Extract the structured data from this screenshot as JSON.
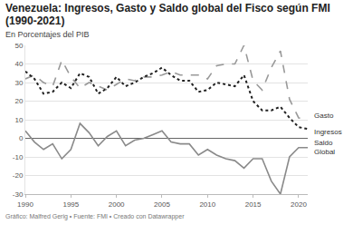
{
  "chart_data": {
    "type": "line",
    "title": "Venezuela: Ingresos, Gasto y Saldo global del Fisco según FMI (1990-2021)",
    "subtitle": "En Porcentajes del PIB",
    "footer": "Gráfico: Malfred Gerig • Fuente: FMI • Creado con Datawrapper",
    "x": [
      1990,
      1991,
      1992,
      1993,
      1994,
      1995,
      1996,
      1997,
      1998,
      1999,
      2000,
      2001,
      2002,
      2003,
      2004,
      2005,
      2006,
      2007,
      2008,
      2009,
      2010,
      2011,
      2012,
      2013,
      2014,
      2015,
      2016,
      2017,
      2018,
      2019,
      2020,
      2021
    ],
    "series": [
      {
        "name": "Gasto",
        "color": "#999999",
        "line_style": "dashed",
        "values": [
          32,
          34,
          30,
          28,
          42,
          33,
          27,
          30,
          28,
          26,
          29,
          32,
          31,
          33,
          33,
          34,
          36,
          34,
          34,
          34,
          32,
          39,
          40,
          40,
          50,
          31,
          26,
          38,
          47,
          21,
          11,
          10
        ]
      },
      {
        "name": "Ingresos",
        "color": "#222222",
        "line_style": "dotted",
        "values": [
          36,
          32,
          24,
          25,
          30,
          27,
          35,
          33,
          24,
          27,
          33,
          28,
          30,
          33,
          35,
          38,
          34,
          31,
          31,
          25,
          26,
          30,
          29,
          28,
          34,
          20,
          15,
          15,
          17,
          11,
          6,
          5
        ]
      },
      {
        "name": "Saldo Global",
        "color": "#8a8a8a",
        "line_style": "solid",
        "values": [
          4,
          -2,
          -6,
          -3,
          -11,
          -6,
          8,
          3,
          -4,
          1,
          4,
          -4,
          -1,
          0,
          2,
          4,
          -2,
          -3,
          -3,
          -9,
          -6,
          -9,
          -11,
          -12,
          -16,
          -11,
          -11,
          -23,
          -30,
          -10,
          -5,
          -5
        ]
      }
    ],
    "xlim": [
      1990,
      2021
    ],
    "xticks": [
      1990,
      1995,
      2000,
      2005,
      2010,
      2015,
      2020
    ],
    "ylim": [
      -30,
      50
    ],
    "yticks": [
      -30,
      -20,
      -10,
      0,
      10,
      20,
      30,
      40,
      50
    ],
    "grid": true
  }
}
